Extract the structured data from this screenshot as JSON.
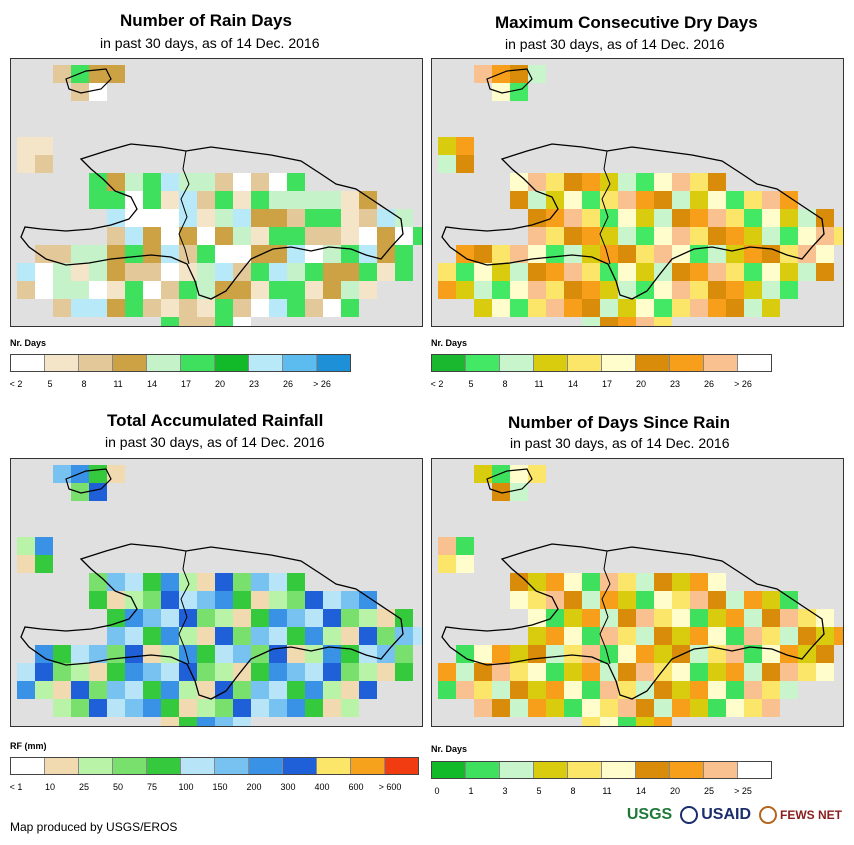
{
  "panels": [
    {
      "title": "Number of Rain Days",
      "subtitle": "in past 30 days, as of 14 Dec. 2016",
      "legend_title": "Nr. Days",
      "legend_colors": [
        "#ffffff",
        "#f4e4c8",
        "#e3c99a",
        "#cda244",
        "#c5f2c8",
        "#3ee05e",
        "#12b928",
        "#b7e9f8",
        "#5cbcf0",
        "#1e90d8"
      ],
      "legend_ticks": [
        "< 2",
        "5",
        "8",
        "11",
        "14",
        "17",
        "20",
        "23",
        "26",
        "> 26"
      ],
      "palette": [
        "#f4e4c8",
        "#e3c99a",
        "#cda244",
        "#ffffff",
        "#c5f2c8",
        "#3ee05e",
        "#b7e9f8"
      ]
    },
    {
      "title": "Maximum Consecutive Dry Days",
      "subtitle": "in past 30 days, as of 14 Dec. 2016",
      "legend_title": "Nr. Days",
      "legend_colors": [
        "#1ab82e",
        "#43e865",
        "#c9f5cc",
        "#d9cc0e",
        "#fce66a",
        "#fffdcc",
        "#d98b0a",
        "#f79e1b",
        "#f9c090",
        "#ffffff"
      ],
      "legend_ticks": [
        "< 2",
        "5",
        "8",
        "11",
        "14",
        "17",
        "20",
        "23",
        "26",
        "> 26"
      ],
      "palette": [
        "#fffdcc",
        "#d9cc0e",
        "#fce66a",
        "#d98b0a",
        "#f79e1b",
        "#f9c090",
        "#c9f5cc",
        "#43e865"
      ]
    },
    {
      "title": "Total Accumulated Rainfall",
      "subtitle": "in past 30 days, as of 14 Dec. 2016",
      "legend_title": "RF (mm)",
      "legend_colors": [
        "#ffffff",
        "#f1d9b0",
        "#b8f3a8",
        "#79e06e",
        "#35c93e",
        "#b8e4f8",
        "#78c2f2",
        "#3a92e6",
        "#1f5fd8",
        "#fce66a",
        "#f7a21c",
        "#f03c10"
      ],
      "legend_ticks": [
        "< 1",
        "10",
        "25",
        "50",
        "75",
        "100",
        "150",
        "200",
        "300",
        "400",
        "600",
        "> 600"
      ],
      "palette": [
        "#b8f3a8",
        "#79e06e",
        "#35c93e",
        "#b8e4f8",
        "#78c2f2",
        "#3a92e6",
        "#1f5fd8",
        "#f1d9b0"
      ]
    },
    {
      "title": "Number of Days Since Rain",
      "subtitle": "in past 30 days, as of 14 Dec. 2016",
      "legend_title": "Nr. Days",
      "legend_colors": [
        "#12b928",
        "#3ee05e",
        "#c9f5cc",
        "#d9cc0e",
        "#fce66a",
        "#fffdcc",
        "#d98b0a",
        "#f79e1b",
        "#f9c090",
        "#ffffff"
      ],
      "legend_ticks": [
        "0",
        "1",
        "3",
        "5",
        "8",
        "11",
        "14",
        "20",
        "25",
        "> 25"
      ],
      "palette": [
        "#f79e1b",
        "#fffdcc",
        "#d98b0a",
        "#f9c090",
        "#fce66a",
        "#c9f5cc",
        "#3ee05e",
        "#d9cc0e"
      ]
    }
  ],
  "footer": "Map produced by USGS/EROS",
  "logos": {
    "usgs": "USGS",
    "usaid": "USAID",
    "fews": "FEWS NET"
  }
}
